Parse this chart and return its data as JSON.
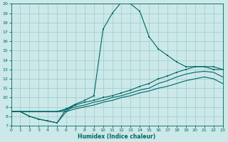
{
  "xlabel": "Humidex (Indice chaleur)",
  "bg_color": "#cce8e8",
  "grid_color": "#99cccc",
  "line_color": "#006666",
  "xlim": [
    0,
    23
  ],
  "ylim": [
    7,
    20
  ],
  "xticks": [
    0,
    1,
    2,
    3,
    4,
    5,
    6,
    7,
    8,
    9,
    10,
    11,
    12,
    13,
    14,
    15,
    16,
    17,
    18,
    19,
    20,
    21,
    22,
    23
  ],
  "yticks": [
    7,
    8,
    9,
    10,
    11,
    12,
    13,
    14,
    15,
    16,
    17,
    18,
    19,
    20
  ],
  "curve_main_x": [
    0,
    1,
    2,
    3,
    4,
    5,
    6,
    7,
    8,
    9,
    10,
    11,
    12,
    13,
    14,
    15,
    16,
    17,
    18,
    19,
    20,
    21,
    22,
    23
  ],
  "curve_main_y": [
    8.5,
    8.5,
    8.0,
    7.7,
    7.5,
    7.3,
    8.8,
    9.3,
    9.7,
    10.2,
    17.3,
    19.0,
    20.2,
    20.0,
    19.2,
    16.5,
    15.2,
    14.5,
    13.8,
    13.3,
    13.3,
    13.3,
    13.0,
    13.0
  ],
  "curve_dip_x": [
    0,
    1,
    2,
    3,
    4,
    5,
    6,
    7
  ],
  "curve_dip_y": [
    8.5,
    8.5,
    8.0,
    7.7,
    7.5,
    7.3,
    8.5,
    9.3
  ],
  "curve_flat1_x": [
    0,
    5,
    6,
    7,
    8,
    9,
    10,
    11,
    12,
    13,
    14,
    15,
    16,
    17,
    18,
    19,
    20,
    21,
    22,
    23
  ],
  "curve_flat1_y": [
    8.5,
    8.5,
    8.8,
    9.2,
    9.5,
    9.7,
    10.0,
    10.2,
    10.5,
    10.8,
    11.2,
    11.5,
    12.0,
    12.3,
    12.7,
    13.0,
    13.3,
    13.3,
    13.3,
    13.0
  ],
  "curve_flat2_x": [
    0,
    5,
    6,
    7,
    8,
    9,
    10,
    11,
    12,
    13,
    14,
    15,
    16,
    17,
    18,
    19,
    20,
    21,
    22,
    23
  ],
  "curve_flat2_y": [
    8.5,
    8.5,
    8.7,
    9.0,
    9.2,
    9.5,
    9.7,
    10.0,
    10.2,
    10.5,
    10.8,
    11.0,
    11.5,
    11.8,
    12.2,
    12.5,
    12.7,
    12.8,
    12.7,
    12.2
  ],
  "curve_flat3_x": [
    0,
    5,
    6,
    7,
    8,
    9,
    10,
    11,
    12,
    13,
    14,
    15,
    16,
    17,
    18,
    19,
    20,
    21,
    22,
    23
  ],
  "curve_flat3_y": [
    8.5,
    8.5,
    8.5,
    8.8,
    9.0,
    9.2,
    9.5,
    9.7,
    10.0,
    10.2,
    10.5,
    10.7,
    11.0,
    11.2,
    11.5,
    11.8,
    12.0,
    12.2,
    12.0,
    11.5
  ]
}
